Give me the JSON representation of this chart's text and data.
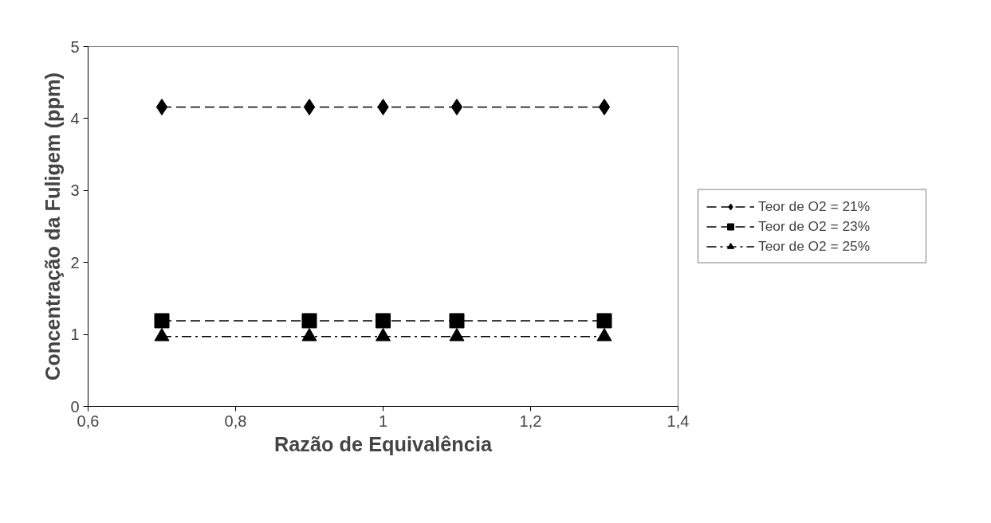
{
  "chart_data": {
    "type": "line",
    "xlabel": "Razão de Equivalência",
    "ylabel": "Concentração da Fuligem (ppm)",
    "x": [
      0.7,
      0.9,
      1.0,
      1.1,
      1.3
    ],
    "series": [
      {
        "name": "Teor de O2 = 21%",
        "color": "#000000",
        "values": [
          4.16,
          4.16,
          4.16,
          4.16,
          4.16
        ],
        "marker": "diamond",
        "line_style": "dashed"
      },
      {
        "name": "Teor de O2 = 23%",
        "color": "#000000",
        "values": [
          1.19,
          1.19,
          1.19,
          1.19,
          1.19
        ],
        "marker": "square",
        "line_style": "dashed"
      },
      {
        "name": "Teor de O2 = 25%",
        "color": "#000000",
        "values": [
          0.97,
          0.97,
          0.97,
          0.97,
          0.97
        ],
        "marker": "triangle",
        "line_style": "dashdot"
      }
    ],
    "xlim": [
      0.6,
      1.4
    ],
    "ylim": [
      0,
      5
    ],
    "xticks": [
      {
        "value": 0.6,
        "label": "0,6"
      },
      {
        "value": 0.8,
        "label": "0,8"
      },
      {
        "value": 1,
        "label": "1"
      },
      {
        "value": 1.2,
        "label": "1,2"
      },
      {
        "value": 1.4,
        "label": "1,4"
      }
    ],
    "yticks": [
      0,
      1,
      2,
      3,
      4,
      5
    ],
    "grid": false,
    "legend": "right"
  }
}
